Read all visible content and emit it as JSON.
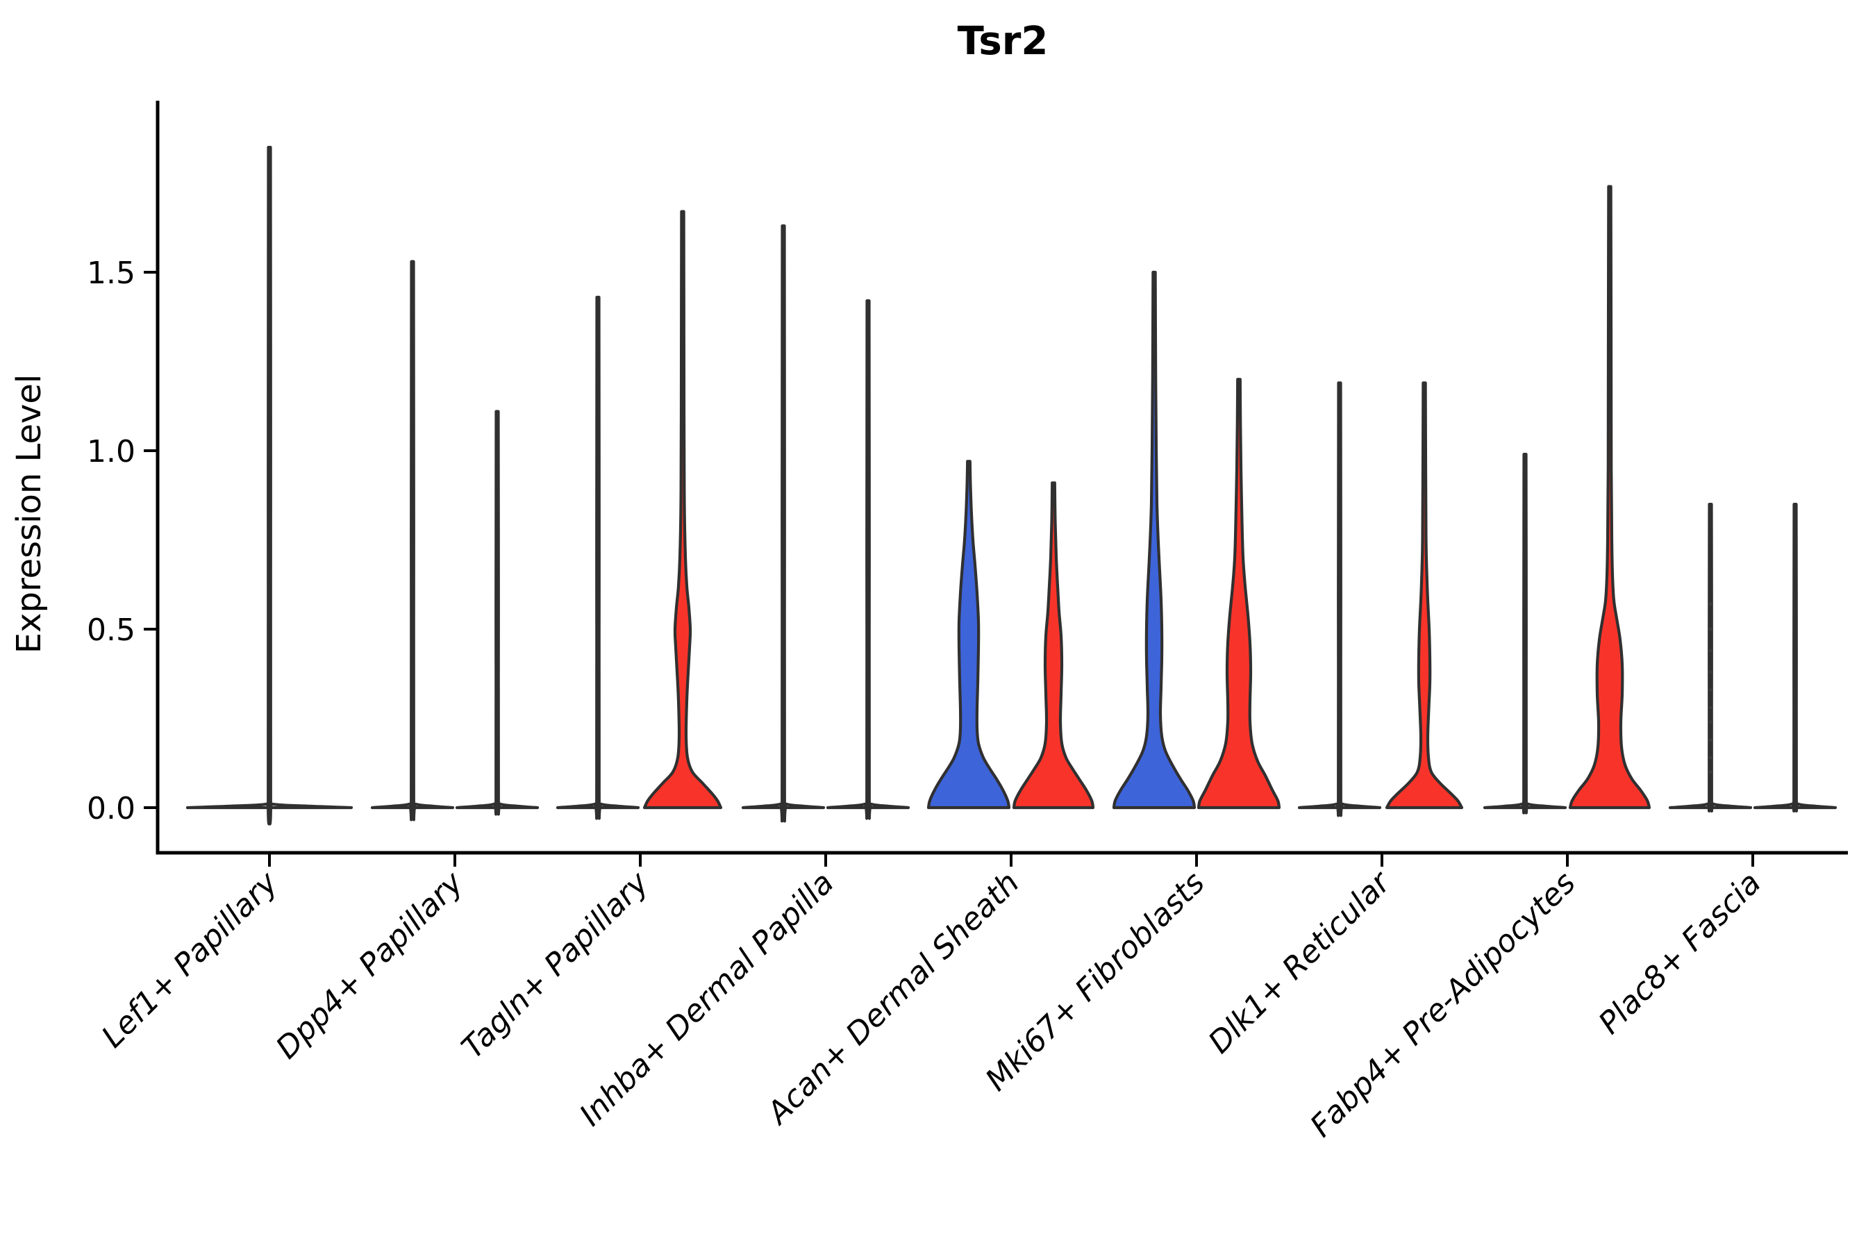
{
  "style": {
    "blue": "#3E64D9",
    "red": "#F8342A",
    "violin_stroke": "#303030",
    "axis_color": "#000000",
    "dot_color": "#555555"
  },
  "chart_data": {
    "type": "violin",
    "title": "Tsr2",
    "ylabel": "Expression Level",
    "xlabel": "",
    "grid": false,
    "legend": "none",
    "ylim": [
      -0.13,
      1.98
    ],
    "yticks": [
      0.0,
      0.5,
      1.0,
      1.5
    ],
    "ytick_labels": [
      "0.0",
      "0.5",
      "1.0",
      "1.5"
    ],
    "categories": [
      "Lef1+ Papillary",
      "Dpp4+ Papillary",
      "Tagln+ Papillary",
      "Inhba+ Dermal Papilla",
      "Acan+ Dermal Sheath",
      "Mki67+ Fibroblasts",
      "Dlk1+ Reticular",
      "Fabp4+ Pre-Adipocytes",
      "Plac8+ Fascia"
    ],
    "groups": [
      {
        "category": "Lef1+ Papillary",
        "violins": [
          {
            "side": "single",
            "fill": "none",
            "max": 1.85,
            "profile": [
              [
                0,
                118
              ],
              [
                0.004,
                59
              ],
              [
                0.01,
                5
              ],
              [
                0.025,
                1.8
              ],
              [
                0.92,
                1.8
              ],
              [
                1.85,
                1.5
              ]
            ]
          }
        ]
      },
      {
        "category": "Dpp4+ Papillary",
        "violins": [
          {
            "side": "left",
            "fill": "none",
            "max": 1.53,
            "profile": [
              [
                0,
                58
              ],
              [
                0.004,
                29
              ],
              [
                0.01,
                5
              ],
              [
                0.025,
                1.8
              ],
              [
                0.76,
                1.8
              ],
              [
                1.53,
                1.5
              ]
            ]
          },
          {
            "side": "right",
            "fill": "none",
            "max": 1.11,
            "profile": [
              [
                0,
                58
              ],
              [
                0.004,
                29
              ],
              [
                0.01,
                5
              ],
              [
                0.025,
                1.8
              ],
              [
                0.55,
                1.8
              ],
              [
                1.11,
                1.5
              ]
            ]
          }
        ]
      },
      {
        "category": "Tagln+ Papillary",
        "violins": [
          {
            "side": "left",
            "fill": "none",
            "max": 1.43,
            "profile": [
              [
                0,
                58
              ],
              [
                0.004,
                29
              ],
              [
                0.01,
                5
              ],
              [
                0.025,
                1.8
              ],
              [
                0.71,
                1.8
              ],
              [
                1.43,
                1.5
              ]
            ]
          },
          {
            "side": "right",
            "fill": "red",
            "max": 1.67,
            "profile": [
              [
                0,
                55
              ],
              [
                0.02,
                50
              ],
              [
                0.04,
                42
              ],
              [
                0.07,
                28
              ],
              [
                0.1,
                14
              ],
              [
                0.14,
                7
              ],
              [
                0.2,
                5
              ],
              [
                0.3,
                6
              ],
              [
                0.38,
                8
              ],
              [
                0.45,
                10
              ],
              [
                0.5,
                11
              ],
              [
                0.56,
                9
              ],
              [
                0.62,
                6
              ],
              [
                0.7,
                4
              ],
              [
                0.85,
                2.5
              ],
              [
                1.1,
                2
              ],
              [
                1.67,
                1.6
              ]
            ]
          }
        ]
      },
      {
        "category": "Inhba+ Dermal Papilla",
        "violins": [
          {
            "side": "left",
            "fill": "none",
            "max": 1.63,
            "profile": [
              [
                0,
                58
              ],
              [
                0.004,
                29
              ],
              [
                0.01,
                5
              ],
              [
                0.025,
                1.8
              ],
              [
                0.81,
                1.8
              ],
              [
                1.63,
                1.5
              ]
            ]
          },
          {
            "side": "right",
            "fill": "none",
            "max": 1.42,
            "profile": [
              [
                0,
                58
              ],
              [
                0.004,
                29
              ],
              [
                0.01,
                5
              ],
              [
                0.025,
                1.8
              ],
              [
                0.71,
                1.8
              ],
              [
                1.42,
                1.5
              ]
            ]
          }
        ]
      },
      {
        "category": "Acan+ Dermal Sheath",
        "violins": [
          {
            "side": "left",
            "fill": "blue",
            "max": 0.97,
            "profile": [
              [
                0,
                58
              ],
              [
                0.02,
                56
              ],
              [
                0.05,
                49
              ],
              [
                0.08,
                40
              ],
              [
                0.11,
                30
              ],
              [
                0.14,
                21
              ],
              [
                0.18,
                14
              ],
              [
                0.22,
                12
              ],
              [
                0.28,
                12
              ],
              [
                0.35,
                13
              ],
              [
                0.45,
                14
              ],
              [
                0.52,
                14
              ],
              [
                0.6,
                12
              ],
              [
                0.68,
                9
              ],
              [
                0.75,
                6
              ],
              [
                0.82,
                4
              ],
              [
                0.9,
                2.5
              ],
              [
                0.97,
                1.8
              ]
            ]
          },
          {
            "side": "right",
            "fill": "red",
            "max": 0.91,
            "profile": [
              [
                0,
                57
              ],
              [
                0.02,
                55
              ],
              [
                0.05,
                47
              ],
              [
                0.08,
                37
              ],
              [
                0.11,
                27
              ],
              [
                0.14,
                18
              ],
              [
                0.18,
                12
              ],
              [
                0.24,
                10
              ],
              [
                0.32,
                11
              ],
              [
                0.4,
                12
              ],
              [
                0.48,
                11
              ],
              [
                0.55,
                8
              ],
              [
                0.62,
                6
              ],
              [
                0.7,
                4
              ],
              [
                0.8,
                2.5
              ],
              [
                0.91,
                1.8
              ]
            ]
          }
        ]
      },
      {
        "category": "Mki67+ Fibroblasts",
        "violins": [
          {
            "side": "left",
            "fill": "blue",
            "max": 1.5,
            "profile": [
              [
                0,
                58
              ],
              [
                0.02,
                56
              ],
              [
                0.05,
                48
              ],
              [
                0.08,
                38
              ],
              [
                0.12,
                26
              ],
              [
                0.16,
                16
              ],
              [
                0.2,
                11
              ],
              [
                0.26,
                9
              ],
              [
                0.34,
                10
              ],
              [
                0.42,
                11
              ],
              [
                0.5,
                11
              ],
              [
                0.58,
                10
              ],
              [
                0.66,
                8
              ],
              [
                0.74,
                6
              ],
              [
                0.85,
                4
              ],
              [
                1.0,
                3
              ],
              [
                1.2,
                2.2
              ],
              [
                1.5,
                1.6
              ]
            ]
          },
          {
            "side": "right",
            "fill": "red",
            "max": 1.2,
            "profile": [
              [
                0,
                58
              ],
              [
                0.02,
                56
              ],
              [
                0.05,
                48
              ],
              [
                0.09,
                38
              ],
              [
                0.13,
                27
              ],
              [
                0.18,
                19
              ],
              [
                0.24,
                16
              ],
              [
                0.3,
                16
              ],
              [
                0.38,
                17
              ],
              [
                0.46,
                16
              ],
              [
                0.54,
                13
              ],
              [
                0.62,
                9
              ],
              [
                0.7,
                6
              ],
              [
                0.8,
                4.5
              ],
              [
                0.95,
                3
              ],
              [
                1.08,
                2.2
              ],
              [
                1.2,
                1.8
              ]
            ]
          }
        ]
      },
      {
        "category": "Dlk1+ Reticular",
        "violins": [
          {
            "side": "left",
            "fill": "none",
            "max": 1.19,
            "profile": [
              [
                0,
                58
              ],
              [
                0.004,
                29
              ],
              [
                0.01,
                5
              ],
              [
                0.025,
                1.8
              ],
              [
                0.6,
                1.8
              ],
              [
                1.19,
                1.5
              ]
            ]
          },
          {
            "side": "right",
            "fill": "red",
            "max": 1.19,
            "profile": [
              [
                0,
                54
              ],
              [
                0.02,
                48
              ],
              [
                0.04,
                38
              ],
              [
                0.07,
                22
              ],
              [
                0.1,
                10
              ],
              [
                0.14,
                6
              ],
              [
                0.2,
                5
              ],
              [
                0.28,
                6.5
              ],
              [
                0.35,
                8
              ],
              [
                0.42,
                8
              ],
              [
                0.5,
                7
              ],
              [
                0.58,
                5
              ],
              [
                0.66,
                3.5
              ],
              [
                0.75,
                2.5
              ],
              [
                0.95,
                2
              ],
              [
                1.19,
                1.6
              ]
            ]
          }
        ]
      },
      {
        "category": "Fabp4+ Pre-Adipocytes",
        "violins": [
          {
            "side": "left",
            "fill": "none",
            "max": 0.99,
            "profile": [
              [
                0,
                58
              ],
              [
                0.004,
                29
              ],
              [
                0.01,
                5
              ],
              [
                0.025,
                1.8
              ],
              [
                0.5,
                1.8
              ],
              [
                0.99,
                1.5
              ]
            ]
          },
          {
            "side": "right",
            "fill": "red",
            "max": 1.74,
            "profile": [
              [
                0,
                57
              ],
              [
                0.02,
                54
              ],
              [
                0.05,
                44
              ],
              [
                0.08,
                32
              ],
              [
                0.12,
                22
              ],
              [
                0.17,
                17
              ],
              [
                0.24,
                16
              ],
              [
                0.32,
                18
              ],
              [
                0.4,
                18
              ],
              [
                0.47,
                15
              ],
              [
                0.53,
                10
              ],
              [
                0.58,
                6
              ],
              [
                0.65,
                4
              ],
              [
                0.75,
                3
              ],
              [
                0.95,
                2.2
              ],
              [
                1.3,
                2
              ],
              [
                1.74,
                1.6
              ]
            ]
          }
        ]
      },
      {
        "category": "Plac8+ Fascia",
        "violins": [
          {
            "side": "left",
            "fill": "none",
            "max": 0.85,
            "dots": [
              0.1,
              0.14,
              0.19,
              0.24,
              0.28,
              0.33,
              0.38,
              0.44,
              0.5,
              0.57
            ],
            "profile": [
              [
                0,
                58
              ],
              [
                0.004,
                29
              ],
              [
                0.01,
                5
              ],
              [
                0.025,
                1.8
              ],
              [
                0.43,
                1.8
              ],
              [
                0.85,
                1.5
              ]
            ]
          },
          {
            "side": "right",
            "fill": "none",
            "max": 0.85,
            "profile": [
              [
                0,
                58
              ],
              [
                0.004,
                29
              ],
              [
                0.01,
                5
              ],
              [
                0.025,
                1.8
              ],
              [
                0.43,
                1.8
              ],
              [
                0.85,
                1.5
              ]
            ]
          }
        ]
      }
    ]
  }
}
